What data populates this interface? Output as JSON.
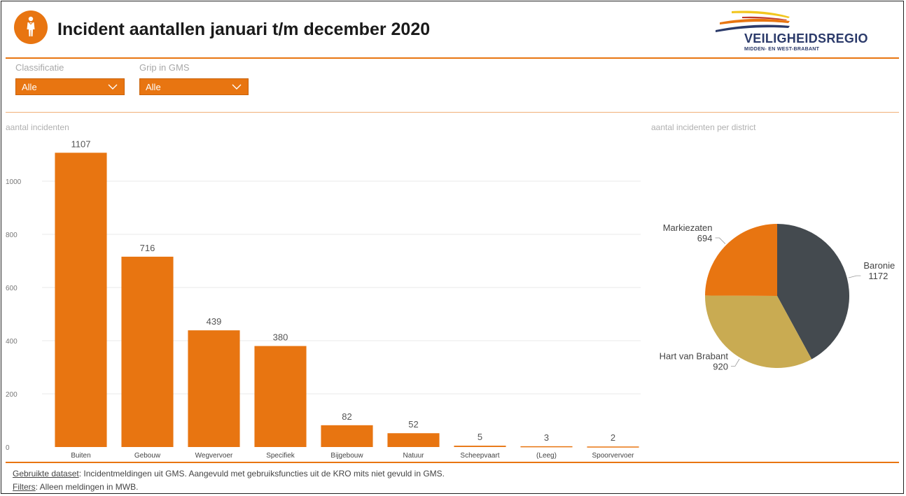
{
  "header": {
    "title": "Incident aantallen januari t/m december 2020",
    "logo": {
      "name": "VEILIGHEIDSREGIO",
      "subtitle": "Midden- en West-Brabant"
    }
  },
  "filters": [
    {
      "label": "Classificatie",
      "value": "Alle"
    },
    {
      "label": "Grip in GMS",
      "value": "Alle"
    }
  ],
  "colors": {
    "accent": "#e87511",
    "baronie": "#444a4f",
    "hart": "#c9ab52",
    "markiezaten": "#e87511"
  },
  "chart_data": [
    {
      "type": "bar",
      "title": "aantal incidenten",
      "categories": [
        "Buiten",
        "Gebouw",
        "Wegvervoer",
        "Specifiek",
        "Bijgebouw",
        "Natuur",
        "Scheepvaart",
        "(Leeg)",
        "Spoorvervoer"
      ],
      "values": [
        1107,
        716,
        439,
        380,
        82,
        52,
        5,
        3,
        2
      ],
      "yticks": [
        0,
        200,
        400,
        600,
        800,
        1000
      ],
      "ylim": [
        0,
        1150
      ],
      "grid": true,
      "color": "#e87511",
      "data_labels": true
    },
    {
      "type": "pie",
      "title": "aantal incidenten per district",
      "labels": [
        "Baronie",
        "Hart van Brabant",
        "Markiezaten"
      ],
      "values": [
        1172,
        920,
        694
      ],
      "colors": [
        "#444a4f",
        "#c9ab52",
        "#e87511"
      ]
    }
  ],
  "footer": {
    "dataset_label": "Gebruikte dataset",
    "dataset_text": ": Incidentmeldingen uit GMS. Aangevuld met gebruiksfuncties uit de KRO mits niet gevuld in GMS.",
    "filters_label": "Filters",
    "filters_text": ": Alleen meldingen in MWB."
  }
}
